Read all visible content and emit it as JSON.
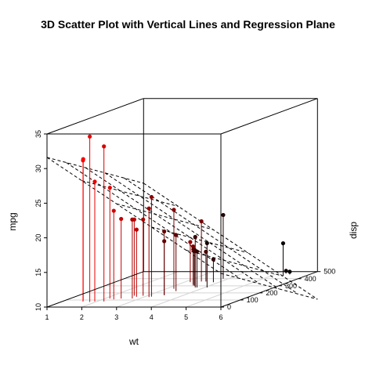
{
  "chart_data": {
    "type": "scatter",
    "title": "3D Scatter Plot with Vertical Lines and Regression Plane",
    "xlabel": "wt",
    "ylabel": "disp",
    "zlabel": "mpg",
    "xlim": [
      1,
      6
    ],
    "ylim": [
      0,
      500
    ],
    "zlim": [
      10,
      35
    ],
    "x_ticks": [
      "1",
      "2",
      "3",
      "4",
      "5",
      "6"
    ],
    "y_ticks": [
      "0",
      "100",
      "200",
      "300",
      "400",
      "500"
    ],
    "z_ticks": [
      "10",
      "15",
      "20",
      "25",
      "30",
      "35"
    ],
    "grid": true,
    "vertical_lines": true,
    "regression_plane": {
      "intercept": 34.96,
      "wt": -3.35,
      "disp": -0.0177
    },
    "color_scale": {
      "low": "#ff0000",
      "high": "#000000",
      "mapped_to": "order"
    },
    "points": [
      {
        "wt": 1.513,
        "disp": 95.1,
        "mpg": 30.4
      },
      {
        "wt": 1.615,
        "disp": 75.7,
        "mpg": 30.4
      },
      {
        "wt": 1.835,
        "disp": 71.1,
        "mpg": 33.9
      },
      {
        "wt": 1.935,
        "disp": 79.0,
        "mpg": 27.3
      },
      {
        "wt": 2.14,
        "disp": 120.3,
        "mpg": 26.0
      },
      {
        "wt": 2.2,
        "disp": 78.7,
        "mpg": 32.4
      },
      {
        "wt": 2.32,
        "disp": 108.0,
        "mpg": 22.8
      },
      {
        "wt": 2.465,
        "disp": 120.1,
        "mpg": 21.5
      },
      {
        "wt": 2.62,
        "disp": 160.0,
        "mpg": 21.0
      },
      {
        "wt": 2.77,
        "disp": 145.0,
        "mpg": 19.7
      },
      {
        "wt": 2.78,
        "disp": 121.0,
        "mpg": 21.4
      },
      {
        "wt": 2.875,
        "disp": 160.0,
        "mpg": 21.0
      },
      {
        "wt": 3.15,
        "disp": 140.8,
        "mpg": 22.8
      },
      {
        "wt": 3.17,
        "disp": 351.0,
        "mpg": 15.8
      },
      {
        "wt": 3.19,
        "disp": 146.7,
        "mpg": 24.4
      },
      {
        "wt": 3.215,
        "disp": 258.0,
        "mpg": 21.4
      },
      {
        "wt": 3.435,
        "disp": 318.0,
        "mpg": 15.5
      },
      {
        "wt": 3.44,
        "disp": 360.0,
        "mpg": 18.7
      },
      {
        "wt": 3.44,
        "disp": 167.6,
        "mpg": 19.2
      },
      {
        "wt": 3.44,
        "disp": 167.6,
        "mpg": 17.8
      },
      {
        "wt": 3.46,
        "disp": 225.0,
        "mpg": 18.1
      },
      {
        "wt": 3.52,
        "disp": 304.0,
        "mpg": 15.2
      },
      {
        "wt": 3.57,
        "disp": 360.0,
        "mpg": 14.3
      },
      {
        "wt": 3.57,
        "disp": 301.0,
        "mpg": 15.0
      },
      {
        "wt": 3.73,
        "disp": 275.8,
        "mpg": 17.3
      },
      {
        "wt": 3.78,
        "disp": 275.8,
        "mpg": 15.2
      },
      {
        "wt": 3.84,
        "disp": 350.0,
        "mpg": 13.3
      },
      {
        "wt": 3.845,
        "disp": 400.0,
        "mpg": 19.2
      },
      {
        "wt": 4.07,
        "disp": 275.8,
        "mpg": 16.4
      },
      {
        "wt": 5.25,
        "disp": 472.0,
        "mpg": 10.4
      },
      {
        "wt": 5.345,
        "disp": 440.0,
        "mpg": 14.7
      },
      {
        "wt": 5.424,
        "disp": 460.0,
        "mpg": 10.4
      }
    ]
  }
}
